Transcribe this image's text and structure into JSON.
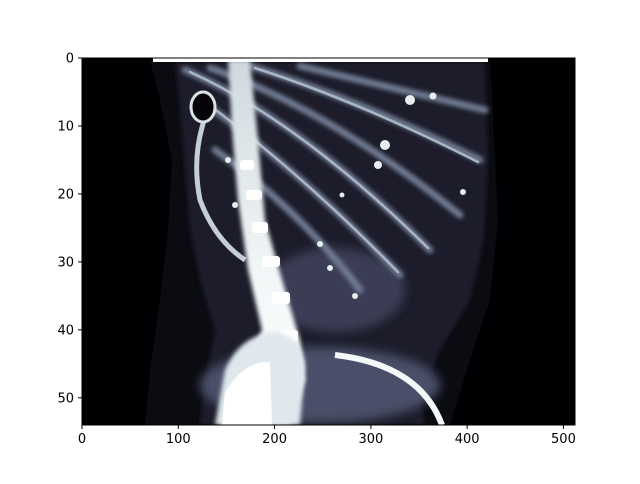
{
  "figure": {
    "background": "#ffffff",
    "image_colormap": "bone",
    "colors": {
      "void": "#000002",
      "tissue_dark": "#1a1a26",
      "tissue_mid": "#3d3f57",
      "tissue_light": "#7d8ba0",
      "bone_bright": "#e8f0f2",
      "bone_white": "#ffffff"
    },
    "icon": "ct-scan-sagittal-slice-icon"
  },
  "chart_data": {
    "type": "heatmap",
    "title": "",
    "xlabel": "",
    "ylabel": "",
    "xlim": [
      0,
      512
    ],
    "ylim": [
      54,
      0
    ],
    "x_ticks": [
      0,
      100,
      200,
      300,
      400,
      500
    ],
    "y_ticks": [
      0,
      10,
      20,
      30,
      40,
      50
    ],
    "x_tick_labels": [
      "0",
      "100",
      "200",
      "300",
      "400",
      "500"
    ],
    "y_tick_labels": [
      "0",
      "10",
      "20",
      "30",
      "40",
      "50"
    ],
    "grid": false
  }
}
